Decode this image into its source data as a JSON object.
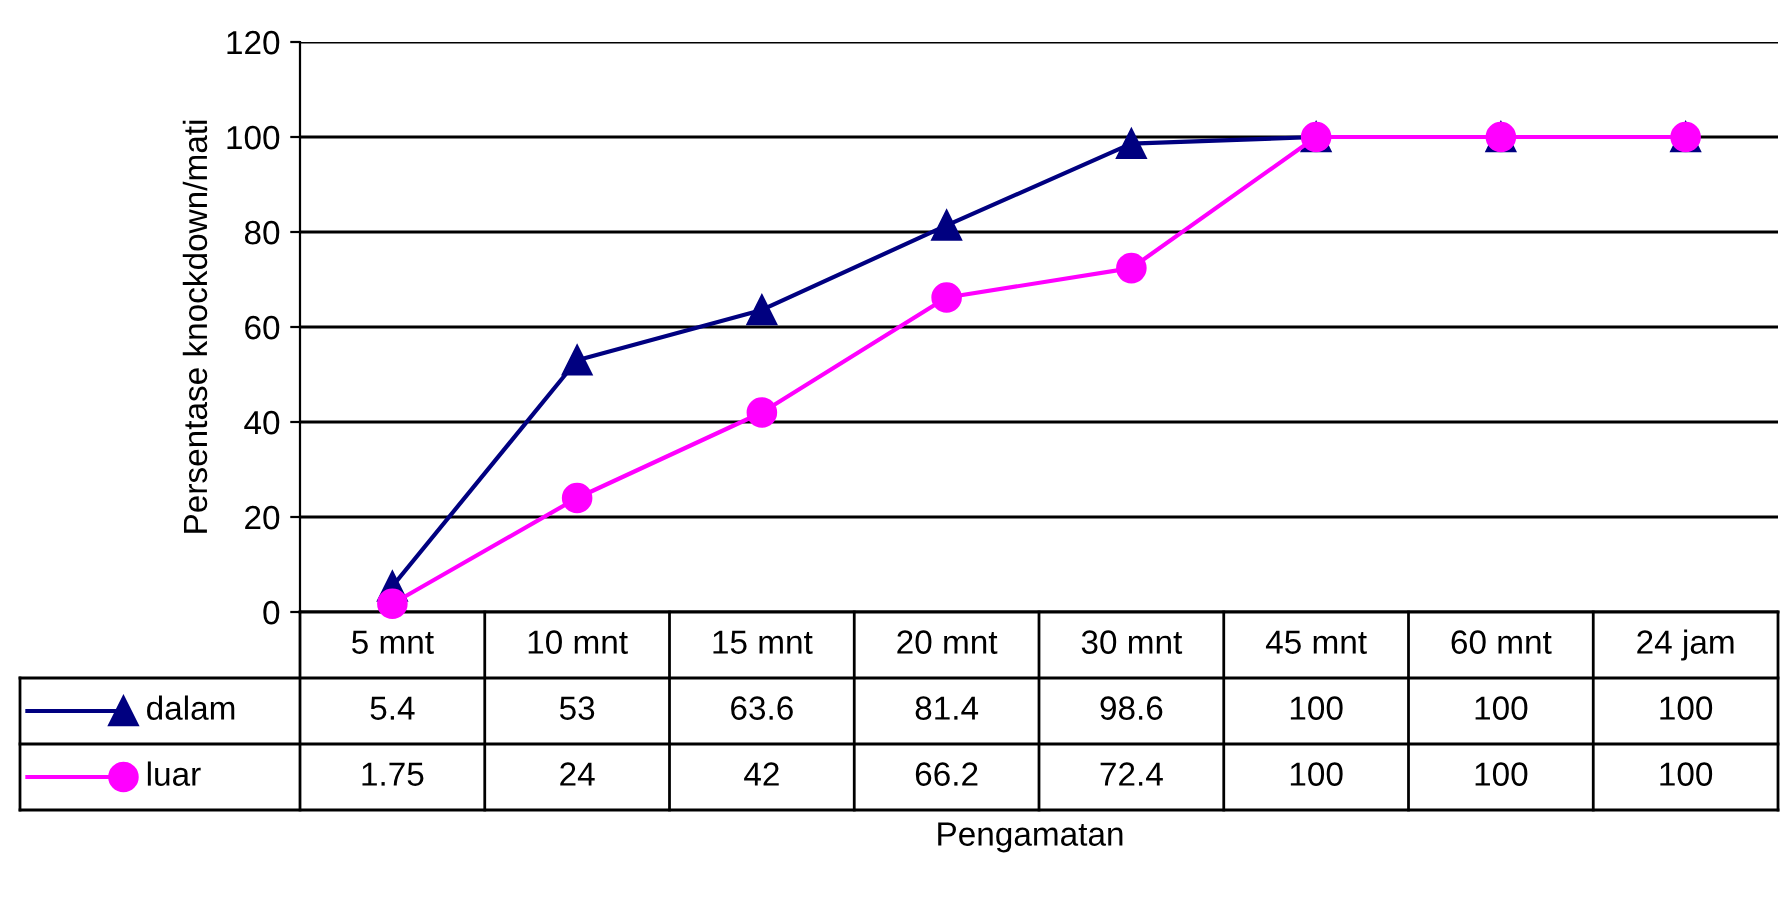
{
  "chart_data": {
    "type": "line",
    "xlabel": "Pengamatan",
    "ylabel": "Persentase knockdown/mati",
    "categories": [
      "5 mnt",
      "10 mnt",
      "15 mnt",
      "20 mnt",
      "30 mnt",
      "45 mnt",
      "60 mnt",
      "24 jam"
    ],
    "series": [
      {
        "name": "dalam",
        "color": "#000080",
        "marker": "triangle",
        "values": [
          5.4,
          53,
          63.6,
          81.4,
          98.6,
          100,
          100,
          100
        ]
      },
      {
        "name": "luar",
        "color": "#ff00ff",
        "marker": "circle",
        "values": [
          1.75,
          24,
          42,
          66.2,
          72.4,
          100,
          100,
          100
        ]
      }
    ],
    "ylim": [
      0,
      120
    ],
    "yticks": [
      0,
      20,
      40,
      60,
      80,
      100,
      120
    ],
    "grid": "y",
    "legend": "bottom left",
    "data_labels": true,
    "line_style": "solid"
  }
}
